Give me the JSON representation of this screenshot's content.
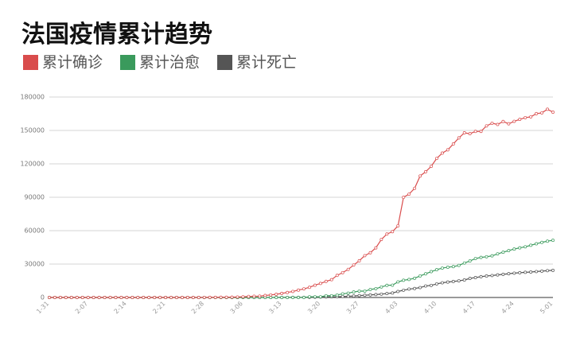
{
  "chart_data": {
    "type": "line",
    "title": "法国疫情累计趋势",
    "categories": [
      "1-31",
      null,
      null,
      null,
      null,
      null,
      null,
      "2-07",
      null,
      null,
      null,
      null,
      null,
      null,
      "2-14",
      null,
      null,
      null,
      null,
      null,
      null,
      "2-21",
      null,
      null,
      null,
      null,
      null,
      null,
      "2-28",
      null,
      null,
      null,
      null,
      null,
      null,
      "3-06",
      null,
      null,
      null,
      null,
      null,
      null,
      "3-13",
      null,
      null,
      null,
      null,
      null,
      null,
      "3-20",
      null,
      null,
      null,
      null,
      null,
      null,
      "3-27",
      null,
      null,
      null,
      null,
      null,
      null,
      "4-03",
      null,
      null,
      null,
      null,
      null,
      null,
      "4-10",
      null,
      null,
      null,
      null,
      null,
      null,
      "4-17",
      null,
      null,
      null,
      null,
      null,
      null,
      "4-24",
      null,
      null,
      null,
      null,
      null,
      null,
      "5-01"
    ],
    "series": [
      {
        "name": "累计确诊",
        "color": "#d94c4c",
        "values": [
          6,
          6,
          6,
          6,
          6,
          6,
          6,
          6,
          11,
          11,
          11,
          11,
          11,
          11,
          11,
          12,
          12,
          12,
          12,
          12,
          12,
          12,
          12,
          12,
          12,
          12,
          18,
          38,
          57,
          100,
          100,
          191,
          212,
          285,
          423,
          613,
          949,
          1126,
          1209,
          1784,
          2281,
          2876,
          3661,
          4499,
          5423,
          6633,
          7730,
          9134,
          10995,
          12612,
          14459,
          16018,
          19856,
          22302,
          25233,
          29155,
          32964,
          37575,
          40174,
          44550,
          52128,
          56989,
          59105,
          64338,
          89953,
          92839,
          98010,
          109069,
          112950,
          117749,
          124869,
          129654,
          132591,
          137875,
          143303,
          147863,
          147091,
          149130,
          149149,
          154097,
          156480,
          155393,
          158050,
          155980,
          158183,
          159952,
          161488,
          162220,
          165093,
          165764,
          169053,
          166420
        ]
      },
      {
        "name": "累计治愈",
        "color": "#3a9a5c",
        "values": [
          0,
          0,
          0,
          0,
          0,
          0,
          0,
          0,
          0,
          0,
          0,
          0,
          0,
          0,
          0,
          4,
          4,
          4,
          4,
          4,
          4,
          4,
          4,
          4,
          4,
          4,
          12,
          12,
          12,
          12,
          12,
          12,
          12,
          12,
          12,
          12,
          12,
          12,
          12,
          12,
          12,
          12,
          12,
          12,
          12,
          12,
          12,
          602,
          602,
          602,
          1587,
          1587,
          2200,
          3281,
          3900,
          4948,
          5700,
          5700,
          7202,
          7927,
          9444,
          10934,
          11053,
          14008,
          15438,
          16183,
          17250,
          19337,
          21254,
          23206,
          24932,
          26391,
          27186,
          27718,
          28805,
          30955,
          32812,
          34972,
          35983,
          36578,
          37409,
          39181,
          40657,
          42088,
          43493,
          44594,
          45513,
          46886,
          48228,
          49476,
          50562,
          51371
        ]
      },
      {
        "name": "累计死亡",
        "color": "#555555",
        "values": [
          0,
          0,
          0,
          0,
          0,
          0,
          0,
          0,
          0,
          0,
          0,
          0,
          0,
          0,
          1,
          1,
          1,
          1,
          1,
          1,
          1,
          1,
          1,
          1,
          1,
          1,
          2,
          2,
          2,
          2,
          2,
          2,
          3,
          4,
          7,
          9,
          11,
          16,
          19,
          30,
          33,
          48,
          61,
          79,
          91,
          127,
          148,
          175,
          244,
          372,
          450,
          562,
          674,
          860,
          1100,
          1331,
          1696,
          1995,
          2314,
          2606,
          3024,
          3523,
          4032,
          5387,
          6507,
          7560,
          8078,
          8911,
          10328,
          10869,
          12210,
          13197,
          13832,
          14393,
          14967,
          15729,
          17148,
          17901,
          18681,
          19323,
          19718,
          20265,
          20796,
          21340,
          21856,
          22245,
          22614,
          22856,
          23293,
          23660,
          24087,
          24376
        ]
      }
    ],
    "ylim": [
      0,
      180000
    ],
    "yticks": [
      0,
      30000,
      60000,
      90000,
      120000,
      150000,
      180000
    ],
    "grid": true
  }
}
